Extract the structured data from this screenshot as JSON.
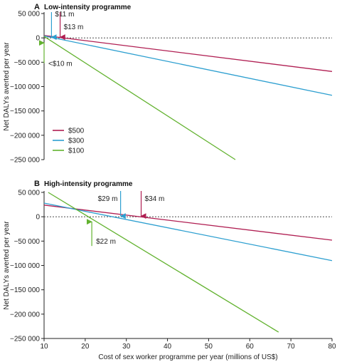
{
  "chart_data": [
    {
      "type": "line",
      "letter": "A",
      "title": "Low-intensity programme",
      "xlim": [
        10,
        80
      ],
      "ylim": [
        -250000,
        50000
      ],
      "yticks": [
        50000,
        0,
        -50000,
        -100000,
        -150000,
        -200000,
        -250000
      ],
      "ytick_labels": [
        "50 000",
        "0",
        "−50 000",
        "−100 000",
        "−150 000",
        "−200 000",
        "−250 000"
      ],
      "ylabel": "Net DALYs averted per year",
      "legend": [
        "$500",
        "$300",
        "$100"
      ],
      "legend_position": "bottom-left",
      "series": [
        {
          "name": "$500",
          "color": "#b01e52",
          "x": [
            10,
            80
          ],
          "y": [
            5000,
            -69000
          ]
        },
        {
          "name": "$300",
          "color": "#2d9fd0",
          "x": [
            10,
            80
          ],
          "y": [
            4000,
            -118000
          ]
        },
        {
          "name": "$100",
          "color": "#62b22f",
          "x": [
            10,
            56.5
          ],
          "y": [
            3000,
            -250000
          ]
        }
      ],
      "zero_line": true,
      "annotations": [
        {
          "text": "$11 m",
          "x": 11.8,
          "color": "#2d9fd0",
          "direction": "down"
        },
        {
          "text": "$13 m",
          "x": 13.9,
          "color": "#b01e52",
          "direction": "down"
        },
        {
          "text": "<$10 m",
          "x": 10,
          "color": "#62b22f",
          "direction": "up"
        }
      ]
    },
    {
      "type": "line",
      "letter": "B",
      "title": "High-intensity programme",
      "xlim": [
        10,
        80
      ],
      "ylim": [
        -250000,
        50000
      ],
      "yticks": [
        50000,
        0,
        -50000,
        -100000,
        -150000,
        -200000,
        -250000
      ],
      "ytick_labels": [
        "50 000",
        "0",
        "−50 000",
        "−100 000",
        "−150 000",
        "−200 000",
        "−250 000"
      ],
      "xticks": [
        10,
        20,
        30,
        40,
        50,
        60,
        70,
        80
      ],
      "xtick_labels": [
        "10",
        "20",
        "30",
        "40",
        "50",
        "60",
        "70",
        "80"
      ],
      "ylabel": "Net DALYs averted per year",
      "xlabel": "Cost of sex worker programme per year (millions of US$)",
      "series": [
        {
          "name": "$500",
          "color": "#b01e52",
          "x": [
            10,
            80
          ],
          "y": [
            24000,
            -48000
          ]
        },
        {
          "name": "$300",
          "color": "#2d9fd0",
          "x": [
            10,
            80
          ],
          "y": [
            28000,
            -90000
          ]
        },
        {
          "name": "$100",
          "color": "#62b22f",
          "x": [
            11,
            67
          ],
          "y": [
            50000,
            -237000
          ]
        }
      ],
      "zero_line": true,
      "annotations": [
        {
          "text": "$29 m",
          "x": 28.6,
          "color": "#2d9fd0",
          "direction": "down"
        },
        {
          "text": "$34 m",
          "x": 33.6,
          "color": "#b01e52",
          "direction": "down"
        },
        {
          "text": "$22 m",
          "x": 21.6,
          "color": "#62b22f",
          "direction": "up"
        }
      ]
    }
  ]
}
